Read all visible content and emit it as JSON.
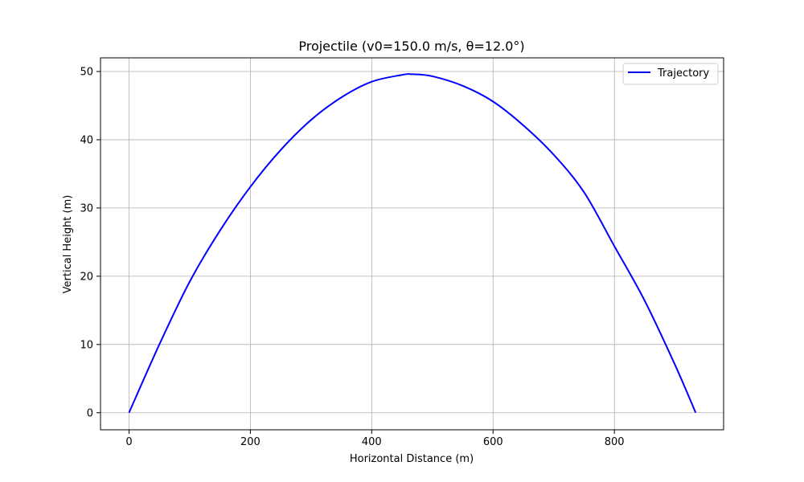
{
  "chart_data": {
    "type": "line",
    "title": "Projectile (v0=150.0 m/s, θ=12.0°)",
    "xlabel": "Horizontal Distance (m)",
    "ylabel": "Vertical Height (m)",
    "xlim": [
      -47,
      980
    ],
    "ylim": [
      -2.5,
      52
    ],
    "xticks": [
      0,
      200,
      400,
      600,
      800
    ],
    "yticks": [
      0,
      10,
      20,
      30,
      40,
      50
    ],
    "xtick_labels": [
      "0",
      "200",
      "400",
      "600",
      "800"
    ],
    "ytick_labels": [
      "0",
      "10",
      "20",
      "30",
      "40",
      "50"
    ],
    "grid": true,
    "legend_position": "top-right",
    "series": [
      {
        "name": "Trajectory",
        "color": "#0000ff",
        "x": [
          0,
          50,
          100,
          150,
          200,
          250,
          300,
          350,
          400,
          450,
          467,
          500,
          550,
          600,
          650,
          700,
          750,
          800,
          850,
          900,
          934
        ],
        "y": [
          0,
          10.0,
          19.2,
          26.7,
          33.1,
          38.5,
          42.9,
          46.2,
          48.5,
          49.5,
          49.6,
          49.3,
          47.9,
          45.6,
          42.1,
          37.8,
          32.3,
          24.4,
          16.4,
          7.0,
          0
        ]
      }
    ]
  }
}
